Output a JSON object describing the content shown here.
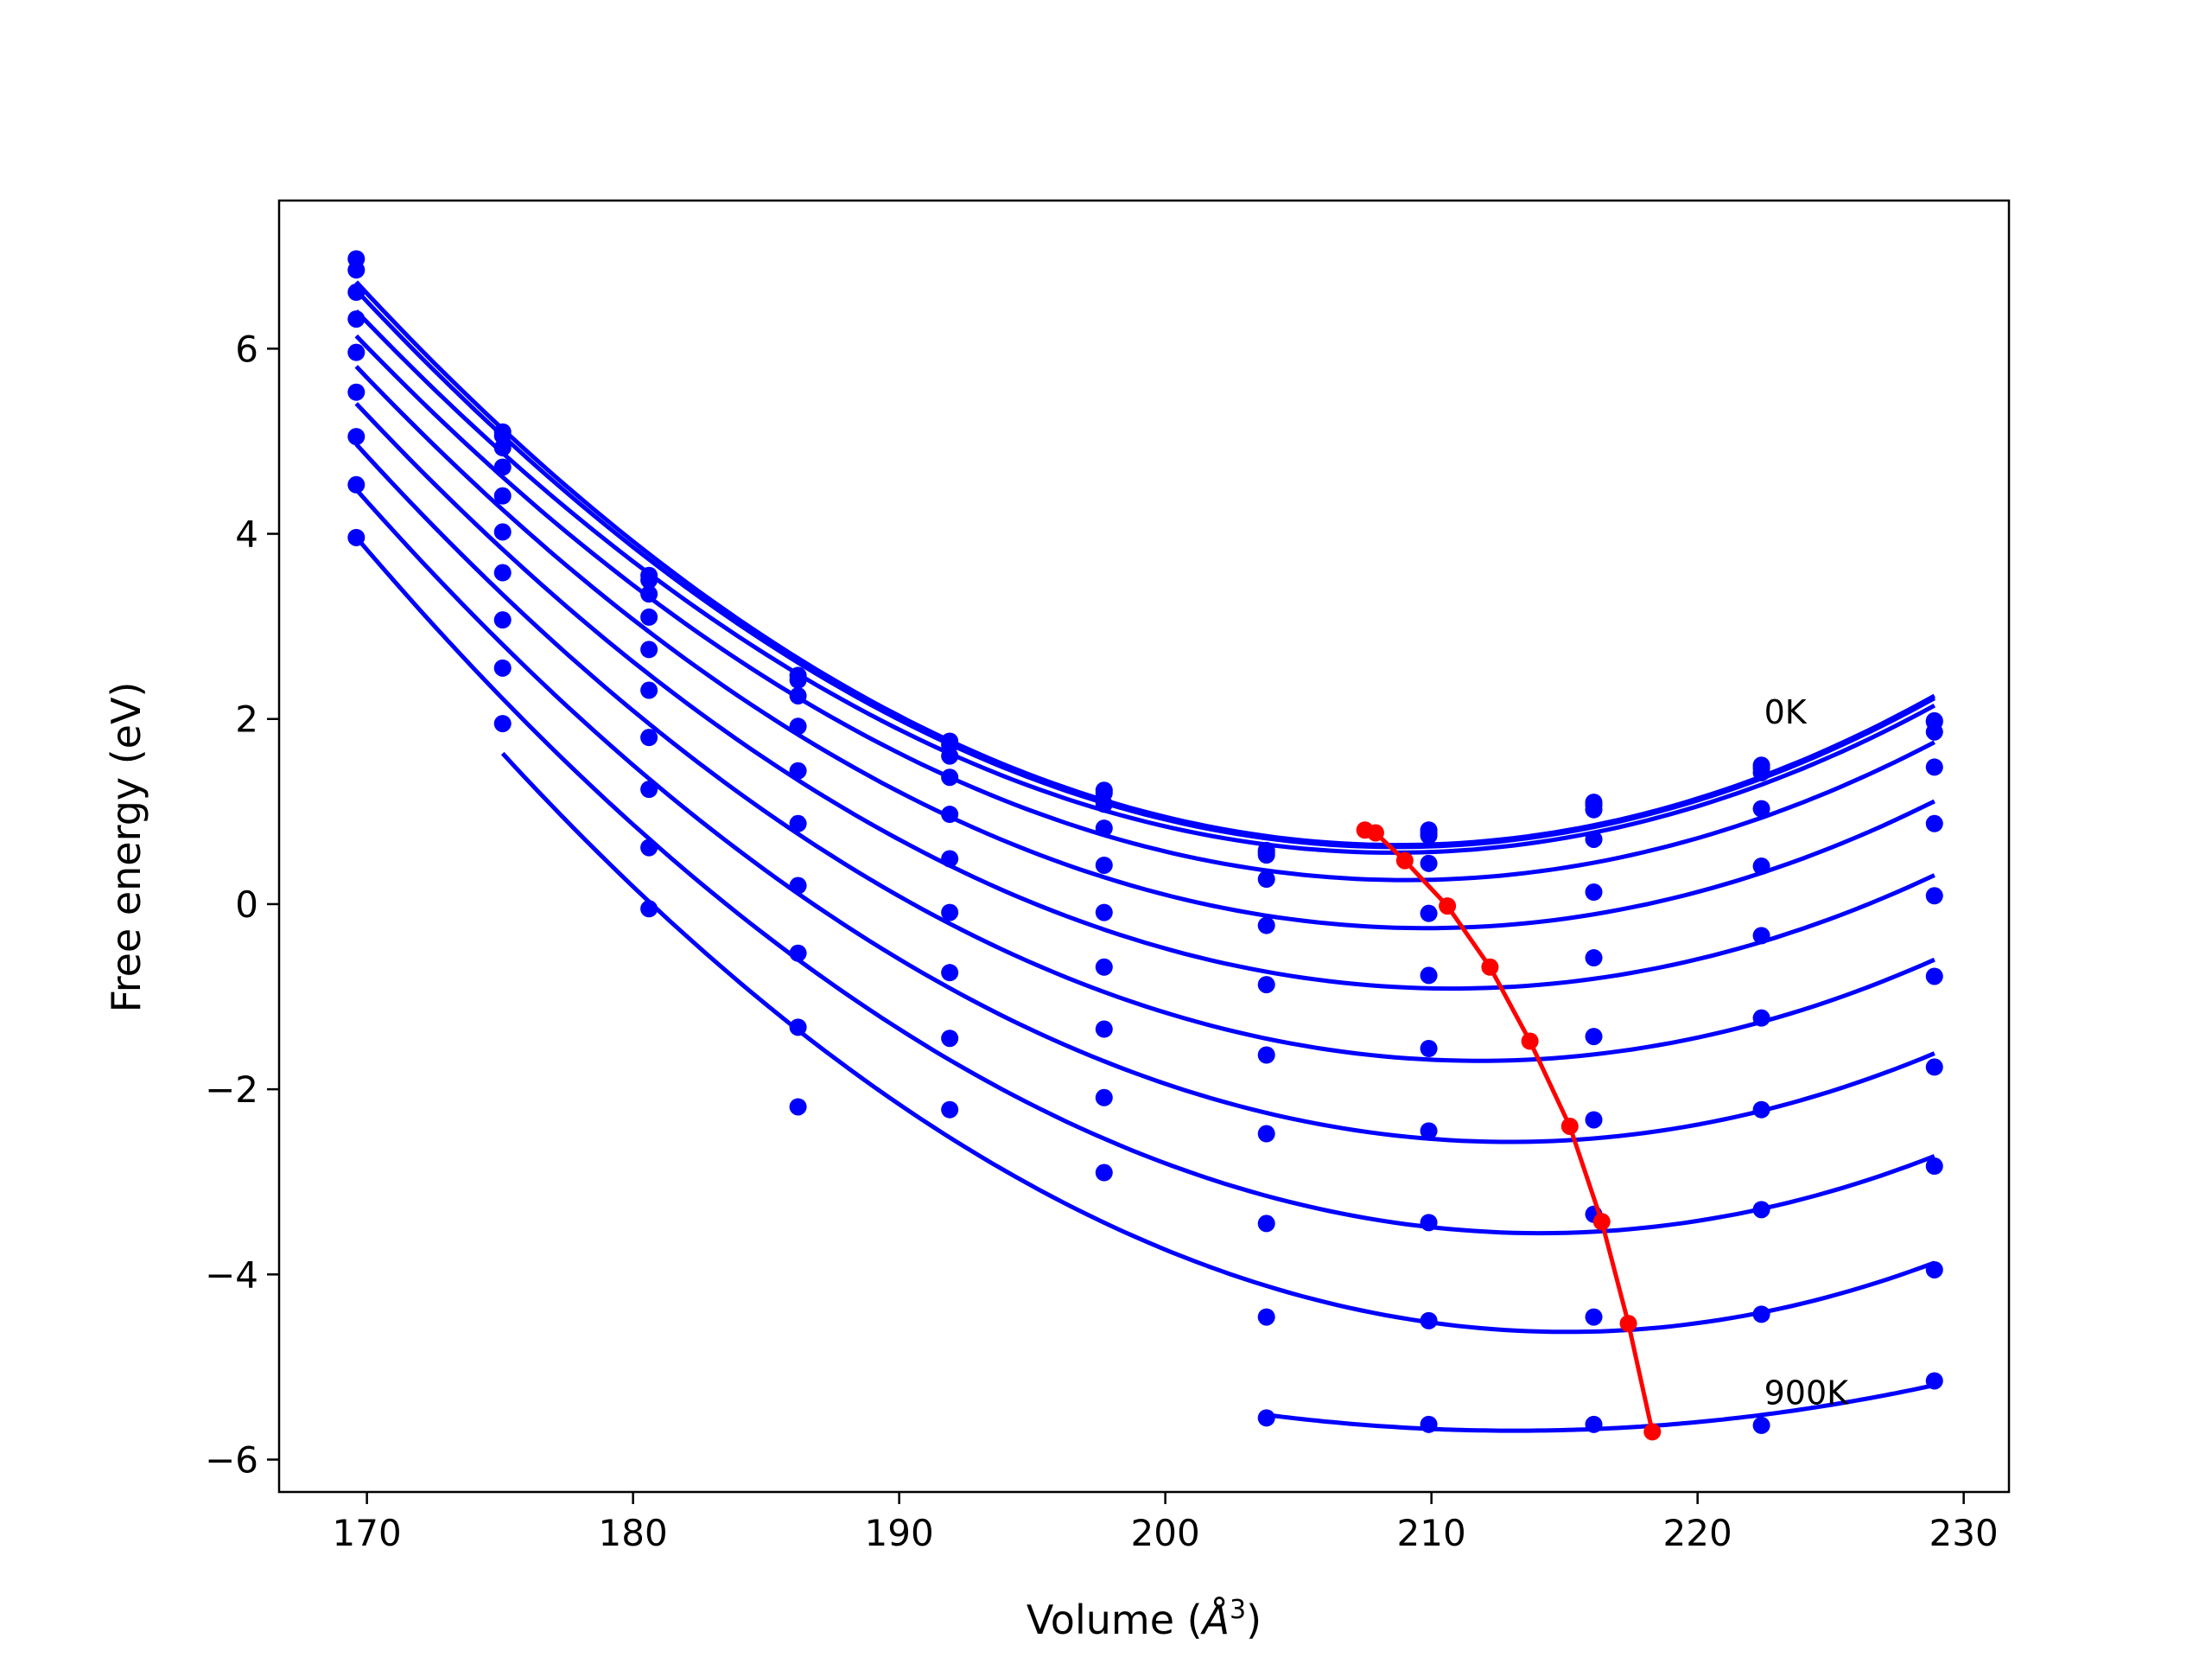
{
  "chart_data": {
    "type": "scatter",
    "xlabel_prefix": "Volume (",
    "xlabel_symbol": "Å",
    "xlabel_power": "3",
    "xlabel_suffix": ")",
    "ylabel": "Free energy (eV)",
    "xlim": [
      166.7,
      231.7
    ],
    "ylim": [
      -6.35,
      7.6
    ],
    "xticks": [
      170,
      180,
      190,
      200,
      210,
      220,
      230
    ],
    "yticks": [
      -6,
      -4,
      -2,
      0,
      2,
      4,
      6
    ],
    "xtick_labels": [
      "170",
      "180",
      "190",
      "200",
      "210",
      "220",
      "230"
    ],
    "ytick_labels": [
      "−6",
      "−4",
      "−2",
      "0",
      "2",
      "4",
      "6"
    ],
    "grid": false,
    "legend": "none",
    "colors": {
      "data": "#0000ff",
      "minimum_line": "#ff0000",
      "axes": "#000000"
    },
    "x": [
      169.6,
      175.1,
      180.6,
      186.2,
      191.9,
      197.7,
      203.8,
      209.9,
      216.1,
      222.4,
      228.9
    ],
    "series": [
      {
        "points": [
          6.97,
          5.1,
          3.55,
          2.47,
          1.76,
          1.23,
          0.58,
          0.8,
          1.1,
          1.5,
          1.98
        ]
      },
      {
        "points": [
          6.85,
          5.06,
          3.5,
          2.42,
          1.72,
          1.2,
          0.56,
          0.77,
          1.07,
          1.47,
          1.97
        ]
      },
      {
        "points": [
          6.61,
          4.93,
          3.35,
          2.25,
          1.6,
          1.08,
          0.53,
          0.74,
          1.02,
          1.42,
          1.86
        ]
      },
      {
        "points": [
          6.32,
          4.72,
          3.1,
          1.92,
          1.37,
          0.82,
          0.27,
          0.44,
          0.7,
          1.03,
          1.48
        ]
      },
      {
        "points": [
          5.96,
          4.41,
          2.75,
          1.44,
          0.97,
          0.42,
          -0.23,
          -0.1,
          0.13,
          0.41,
          0.87
        ]
      },
      {
        "points": [
          5.53,
          4.02,
          2.31,
          0.87,
          0.49,
          -0.09,
          -0.87,
          -0.77,
          -0.58,
          -0.34,
          0.09
        ]
      },
      {
        "points": [
          5.05,
          3.58,
          1.8,
          0.2,
          -0.09,
          -0.68,
          -1.63,
          -1.56,
          -1.43,
          -1.23,
          -0.78
        ]
      },
      {
        "points": [
          4.53,
          3.07,
          1.24,
          -0.53,
          -0.74,
          -1.35,
          -2.48,
          -2.45,
          -2.33,
          -2.22,
          -1.76
        ]
      },
      {
        "points": [
          3.96,
          2.55,
          0.61,
          -1.33,
          -1.45,
          -2.09,
          -3.45,
          -3.44,
          -3.35,
          -3.3,
          -2.83
        ]
      },
      {
        "points": [
          null,
          1.95,
          -0.05,
          -2.19,
          -2.22,
          -2.9,
          -4.46,
          -4.5,
          -4.46,
          -4.43,
          -3.95
        ]
      },
      {
        "points": [
          null,
          null,
          null,
          null,
          null,
          null,
          -5.55,
          -5.62,
          -5.62,
          -5.63,
          -5.15
        ]
      }
    ],
    "fit_minima": {
      "x": [
        207.5,
        207.9,
        209.0,
        210.6,
        212.2,
        213.7,
        215.2,
        216.4,
        217.4,
        218.3
      ],
      "y": [
        0.8,
        0.77,
        0.47,
        -0.02,
        -0.68,
        -1.48,
        -2.4,
        -3.43,
        -4.53,
        -5.7
      ]
    },
    "annotations": [
      {
        "text": "0K",
        "x": 222.5,
        "y": 2.08
      },
      {
        "text": "900K",
        "x": 222.5,
        "y": -5.27
      }
    ]
  }
}
